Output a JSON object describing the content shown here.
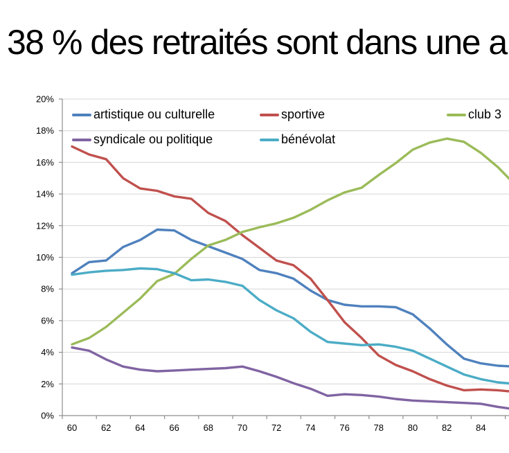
{
  "page_title": "38 % des retraités sont dans une a",
  "chart_data": {
    "type": "line",
    "title": "",
    "xlabel": "",
    "ylabel": "",
    "x": [
      60,
      61,
      62,
      63,
      64,
      65,
      66,
      67,
      68,
      69,
      70,
      71,
      72,
      73,
      74,
      75,
      76,
      77,
      78,
      79,
      80,
      81,
      82,
      83,
      84,
      85,
      86
    ],
    "x_tick_labels": [
      "60",
      "62",
      "64",
      "66",
      "68",
      "70",
      "72",
      "74",
      "76",
      "78",
      "80",
      "82",
      "84"
    ],
    "y_tick_labels": [
      "0%",
      "2%",
      "4%",
      "6%",
      "8%",
      "10%",
      "12%",
      "14%",
      "16%",
      "18%",
      "20%"
    ],
    "ylim": [
      0,
      20
    ],
    "grid": true,
    "legend_position": "top-inside",
    "axis_color": "#8E8E8E",
    "gridline_color": "#D5D5D5",
    "label_color": "#000000",
    "series": [
      {
        "name": "artistique ou culturelle",
        "color": "#4F81BD",
        "values": [
          9.0,
          9.7,
          9.8,
          10.65,
          11.1,
          11.75,
          11.7,
          11.1,
          10.7,
          10.3,
          9.9,
          9.2,
          9.0,
          8.65,
          7.9,
          7.3,
          7.0,
          6.9,
          6.9,
          6.85,
          6.4,
          5.5,
          4.5,
          3.6,
          3.3,
          3.15,
          3.1
        ]
      },
      {
        "name": "sportive",
        "color": "#C0504D",
        "values": [
          17.0,
          16.5,
          16.2,
          15.0,
          14.35,
          14.2,
          13.85,
          13.7,
          12.8,
          12.3,
          11.4,
          10.6,
          9.8,
          9.5,
          8.65,
          7.3,
          5.9,
          4.9,
          3.8,
          3.2,
          2.8,
          2.3,
          1.9,
          1.6,
          1.65,
          1.6,
          1.5
        ]
      },
      {
        "name": "club 3",
        "color": "#9BBB59",
        "values": [
          4.5,
          4.9,
          5.6,
          6.5,
          7.4,
          8.5,
          8.95,
          9.9,
          10.75,
          11.1,
          11.6,
          11.9,
          12.15,
          12.5,
          13.0,
          13.6,
          14.1,
          14.4,
          15.2,
          15.95,
          16.8,
          17.25,
          17.5,
          17.3,
          16.6,
          15.7,
          14.6
        ]
      },
      {
        "name": "syndicale ou politique",
        "color": "#8064A2",
        "values": [
          4.3,
          4.1,
          3.55,
          3.1,
          2.9,
          2.8,
          2.85,
          2.9,
          2.95,
          3.0,
          3.1,
          2.8,
          2.45,
          2.05,
          1.7,
          1.25,
          1.35,
          1.3,
          1.2,
          1.05,
          0.95,
          0.9,
          0.85,
          0.8,
          0.75,
          0.55,
          0.4
        ]
      },
      {
        "name": "bénévolat",
        "color": "#4BACC6",
        "values": [
          8.9,
          9.05,
          9.15,
          9.2,
          9.3,
          9.25,
          9.0,
          8.55,
          8.6,
          8.45,
          8.2,
          7.3,
          6.65,
          6.15,
          5.3,
          4.65,
          4.55,
          4.45,
          4.5,
          4.35,
          4.1,
          3.6,
          3.1,
          2.6,
          2.3,
          2.1,
          2.0
        ]
      }
    ]
  }
}
